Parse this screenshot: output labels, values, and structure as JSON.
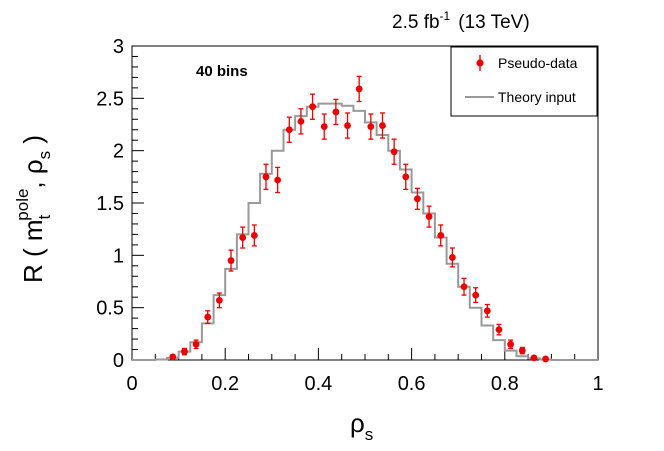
{
  "chart_data": {
    "type": "scatter",
    "title": "",
    "header_lumi_value": "2.5 fb",
    "header_lumi_exp": "-1",
    "header_energy": "(13 TeV)",
    "annotation": "40 bins",
    "xlabel_main": "ρ",
    "xlabel_sub": "s",
    "ylabel": {
      "prefix": "R ( m",
      "sub": "t",
      "sup": "pole",
      "mid": ", ρ",
      "sub2": "s",
      "suffix": " )"
    },
    "xlim": [
      0,
      1
    ],
    "ylim": [
      0,
      3
    ],
    "x_ticks": [
      0,
      0.2,
      0.4,
      0.6,
      0.8,
      1
    ],
    "x_tick_labels": [
      "0",
      "0.2",
      "0.4",
      "0.6",
      "0.8",
      "1"
    ],
    "y_ticks": [
      0,
      0.5,
      1,
      1.5,
      2,
      2.5,
      3
    ],
    "y_tick_labels": [
      "0",
      "0.5",
      "1",
      "1.5",
      "2",
      "2.5",
      "3"
    ],
    "legend": {
      "placement": "top-right",
      "entries": [
        {
          "label": "Pseudo-data",
          "kind": "marker",
          "color": "#ee0000"
        },
        {
          "label": "Theory input",
          "kind": "line",
          "color": "#999999"
        }
      ]
    },
    "series": [
      {
        "name": "Pseudo-data",
        "color": "#ee0000",
        "x": [
          0.0875,
          0.1125,
          0.1375,
          0.1625,
          0.1875,
          0.2125,
          0.2375,
          0.2625,
          0.2875,
          0.3125,
          0.3375,
          0.3625,
          0.3875,
          0.4125,
          0.4375,
          0.4625,
          0.4875,
          0.5125,
          0.5375,
          0.5625,
          0.5875,
          0.6125,
          0.6375,
          0.6625,
          0.6875,
          0.7125,
          0.7375,
          0.7625,
          0.7875,
          0.8125,
          0.8375,
          0.8625,
          0.8875
        ],
        "y": [
          0.03,
          0.08,
          0.15,
          0.41,
          0.57,
          0.95,
          1.17,
          1.19,
          1.75,
          1.72,
          2.2,
          2.28,
          2.42,
          2.23,
          2.37,
          2.24,
          2.59,
          2.23,
          2.24,
          1.99,
          1.75,
          1.54,
          1.37,
          1.19,
          0.98,
          0.7,
          0.62,
          0.47,
          0.29,
          0.15,
          0.09,
          0.02,
          0.01
        ],
        "yerr": [
          0.02,
          0.03,
          0.04,
          0.06,
          0.07,
          0.1,
          0.1,
          0.1,
          0.12,
          0.12,
          0.12,
          0.12,
          0.12,
          0.12,
          0.12,
          0.12,
          0.12,
          0.12,
          0.12,
          0.12,
          0.12,
          0.1,
          0.1,
          0.1,
          0.09,
          0.08,
          0.07,
          0.06,
          0.05,
          0.04,
          0.03,
          0.02,
          0.01
        ]
      },
      {
        "name": "Theory input",
        "color": "#999999",
        "type": "step",
        "bin_edges": [
          0,
          0.025,
          0.05,
          0.075,
          0.1,
          0.125,
          0.15,
          0.175,
          0.2,
          0.225,
          0.25,
          0.275,
          0.3,
          0.325,
          0.35,
          0.375,
          0.4,
          0.425,
          0.45,
          0.475,
          0.5,
          0.525,
          0.55,
          0.575,
          0.6,
          0.625,
          0.65,
          0.675,
          0.7,
          0.725,
          0.75,
          0.775,
          0.8,
          0.825,
          0.85,
          0.875,
          0.9,
          0.925,
          0.95,
          0.975,
          1
        ],
        "values": [
          0,
          0,
          0.005,
          0.02,
          0.08,
          0.17,
          0.35,
          0.62,
          0.87,
          1.2,
          1.5,
          1.78,
          2.0,
          2.2,
          2.33,
          2.42,
          2.45,
          2.45,
          2.43,
          2.38,
          2.27,
          2.15,
          2.0,
          1.82,
          1.6,
          1.4,
          1.17,
          0.92,
          0.7,
          0.5,
          0.33,
          0.19,
          0.09,
          0.035,
          0.015,
          0.005,
          0,
          0,
          0,
          0
        ]
      }
    ]
  }
}
